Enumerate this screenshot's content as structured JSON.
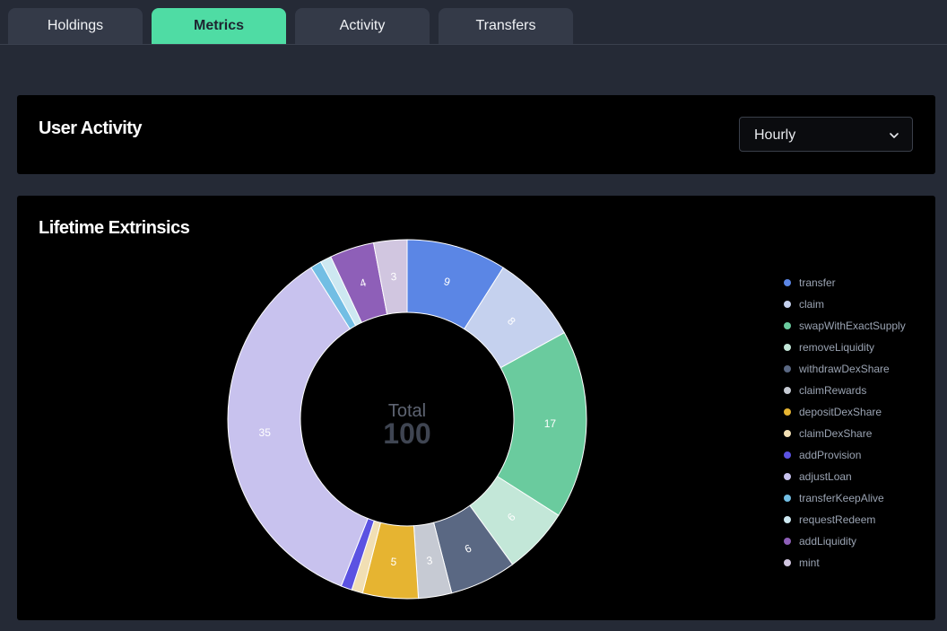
{
  "tabs": [
    {
      "label": "Holdings",
      "active": false
    },
    {
      "label": "Metrics",
      "active": true
    },
    {
      "label": "Activity",
      "active": false
    },
    {
      "label": "Transfers",
      "active": false
    }
  ],
  "user_activity": {
    "title": "User Activity",
    "select": {
      "value": "Hourly"
    }
  },
  "lifetime": {
    "title": "Lifetime Extrinsics",
    "center_label": "Total",
    "center_value": "100"
  },
  "colors": {
    "background": "#252a36",
    "card": "#000000",
    "accent": "#4fdca4"
  },
  "chart_data": {
    "type": "pie",
    "variant": "donut",
    "title": "Lifetime Extrinsics",
    "total": 100,
    "legend_position": "right",
    "slices": [
      {
        "name": "transfer",
        "value": 9,
        "color": "#5b86e5"
      },
      {
        "name": "claim",
        "value": 8,
        "color": "#c5d1ee"
      },
      {
        "name": "swapWithExactSupply",
        "value": 17,
        "color": "#6acb9e"
      },
      {
        "name": "removeLiquidity",
        "value": 6,
        "color": "#c3e7d8"
      },
      {
        "name": "withdrawDexShare",
        "value": 6,
        "color": "#5a6883"
      },
      {
        "name": "claimRewards",
        "value": 3,
        "color": "#c6cad3"
      },
      {
        "name": "depositDexShare",
        "value": 5,
        "color": "#e6b431"
      },
      {
        "name": "claimDexShare",
        "value": 1,
        "color": "#f1dfb4"
      },
      {
        "name": "addProvision",
        "value": 1,
        "color": "#5b52e2"
      },
      {
        "name": "adjustLoan",
        "value": 35,
        "color": "#c8c2ee"
      },
      {
        "name": "transferKeepAlive",
        "value": 1,
        "color": "#72bee4"
      },
      {
        "name": "requestRedeem",
        "value": 1,
        "color": "#cde8f1"
      },
      {
        "name": "addLiquidity",
        "value": 4,
        "color": "#8e5fb8"
      },
      {
        "name": "mint",
        "value": 3,
        "color": "#d1c6e0"
      }
    ]
  }
}
